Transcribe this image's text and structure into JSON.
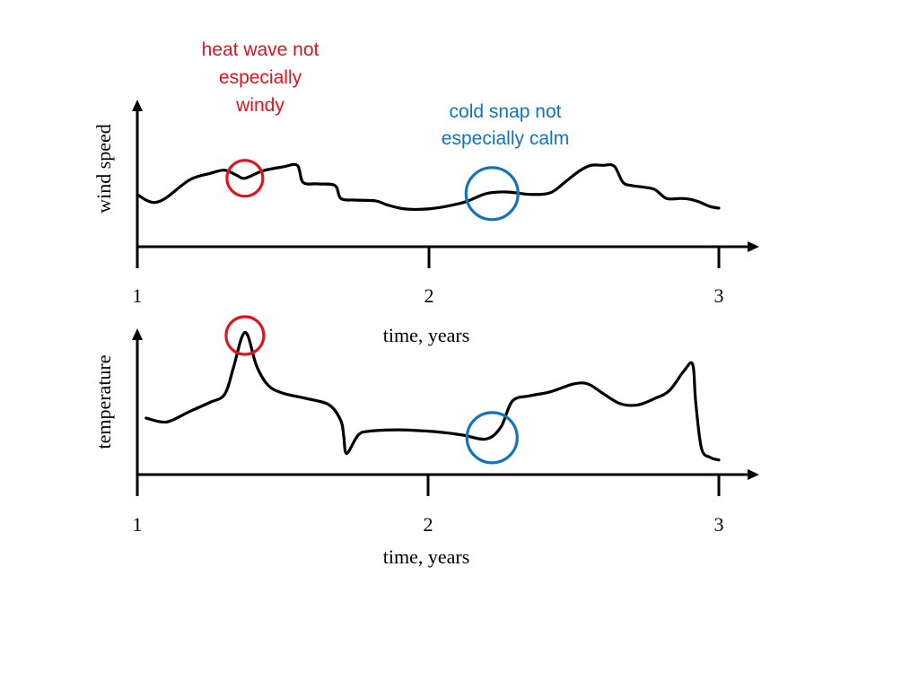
{
  "colors": {
    "axis": "#000000",
    "curve": "#000000",
    "heat_annotation": "#e0141e",
    "cold_annotation": "#1273bd"
  },
  "chart_data": [
    {
      "type": "line",
      "title": "",
      "xlabel": "",
      "ylabel": "wind speed",
      "x_ticks": [
        "1",
        "2",
        "3"
      ],
      "xlim": [
        1,
        3
      ],
      "ylim": [
        0,
        1
      ],
      "grid": false,
      "series": [
        {
          "x": [
            1.0,
            1.03,
            1.06,
            1.1,
            1.18,
            1.25,
            1.3,
            1.34,
            1.37,
            1.43,
            1.5,
            1.55,
            1.57,
            1.62,
            1.68,
            1.7,
            1.75,
            1.82,
            1.86,
            1.92,
            2.0,
            2.06,
            2.13,
            2.2,
            2.27,
            2.35,
            2.42,
            2.47,
            2.52,
            2.56,
            2.6,
            2.64,
            2.67,
            2.7,
            2.74,
            2.78,
            2.82,
            2.87,
            2.9,
            2.93,
            2.97,
            3.0
          ],
          "values": [
            0.37,
            0.3,
            0.27,
            0.33,
            0.55,
            0.63,
            0.67,
            0.61,
            0.57,
            0.66,
            0.71,
            0.73,
            0.52,
            0.5,
            0.48,
            0.32,
            0.3,
            0.29,
            0.24,
            0.19,
            0.19,
            0.22,
            0.28,
            0.38,
            0.4,
            0.37,
            0.39,
            0.52,
            0.66,
            0.73,
            0.73,
            0.72,
            0.52,
            0.48,
            0.46,
            0.43,
            0.32,
            0.32,
            0.31,
            0.28,
            0.22,
            0.2
          ]
        }
      ],
      "annotations": [
        {
          "text": [
            "heat wave not",
            "especially",
            "windy"
          ],
          "x": 1.37,
          "y": 0.57,
          "color": "heat_annotation"
        },
        {
          "text": [
            "cold snap not",
            "especially calm"
          ],
          "x": 2.22,
          "y": 0.38,
          "color": "cold_annotation"
        }
      ]
    },
    {
      "type": "line",
      "title": "",
      "xlabel": "time, years",
      "ylabel": "temperature",
      "x_ticks": [
        "1",
        "2",
        "3"
      ],
      "xlim": [
        1,
        3
      ],
      "ylim": [
        0,
        1
      ],
      "grid": false,
      "series": [
        {
          "x": [
            1.03,
            1.1,
            1.18,
            1.25,
            1.3,
            1.33,
            1.36,
            1.38,
            1.41,
            1.45,
            1.5,
            1.58,
            1.66,
            1.7,
            1.71,
            1.72,
            1.76,
            1.8,
            1.9,
            2.0,
            2.05,
            2.12,
            2.2,
            2.25,
            2.29,
            2.35,
            2.42,
            2.5,
            2.55,
            2.6,
            2.66,
            2.72,
            2.78,
            2.83,
            2.88,
            2.91,
            2.92,
            2.94,
            2.97,
            3.0
          ],
          "values": [
            0.37,
            0.34,
            0.42,
            0.49,
            0.55,
            0.75,
            0.99,
            1.0,
            0.77,
            0.62,
            0.56,
            0.52,
            0.47,
            0.35,
            0.23,
            0.1,
            0.24,
            0.27,
            0.28,
            0.27,
            0.26,
            0.24,
            0.21,
            0.3,
            0.5,
            0.54,
            0.57,
            0.63,
            0.63,
            0.56,
            0.48,
            0.47,
            0.52,
            0.58,
            0.73,
            0.78,
            0.5,
            0.14,
            0.07,
            0.05
          ]
        }
      ],
      "annotations": [
        {
          "x": 1.37,
          "y": 1.0,
          "color": "heat_annotation"
        },
        {
          "x": 2.22,
          "y": 0.22,
          "color": "cold_annotation"
        }
      ]
    }
  ],
  "wind_chart": {
    "ylabel": "wind speed",
    "ticks": [
      "1",
      "2",
      "3"
    ],
    "xlabel": "time, years"
  },
  "temp_chart": {
    "ylabel": "temperature",
    "ticks": [
      "1",
      "2",
      "3"
    ],
    "xlabel": "time, years"
  },
  "annotations": {
    "heat": {
      "lines": [
        "heat wave not",
        "especially",
        "windy"
      ]
    },
    "cold": {
      "lines": [
        "cold snap not",
        "especially calm"
      ]
    }
  }
}
